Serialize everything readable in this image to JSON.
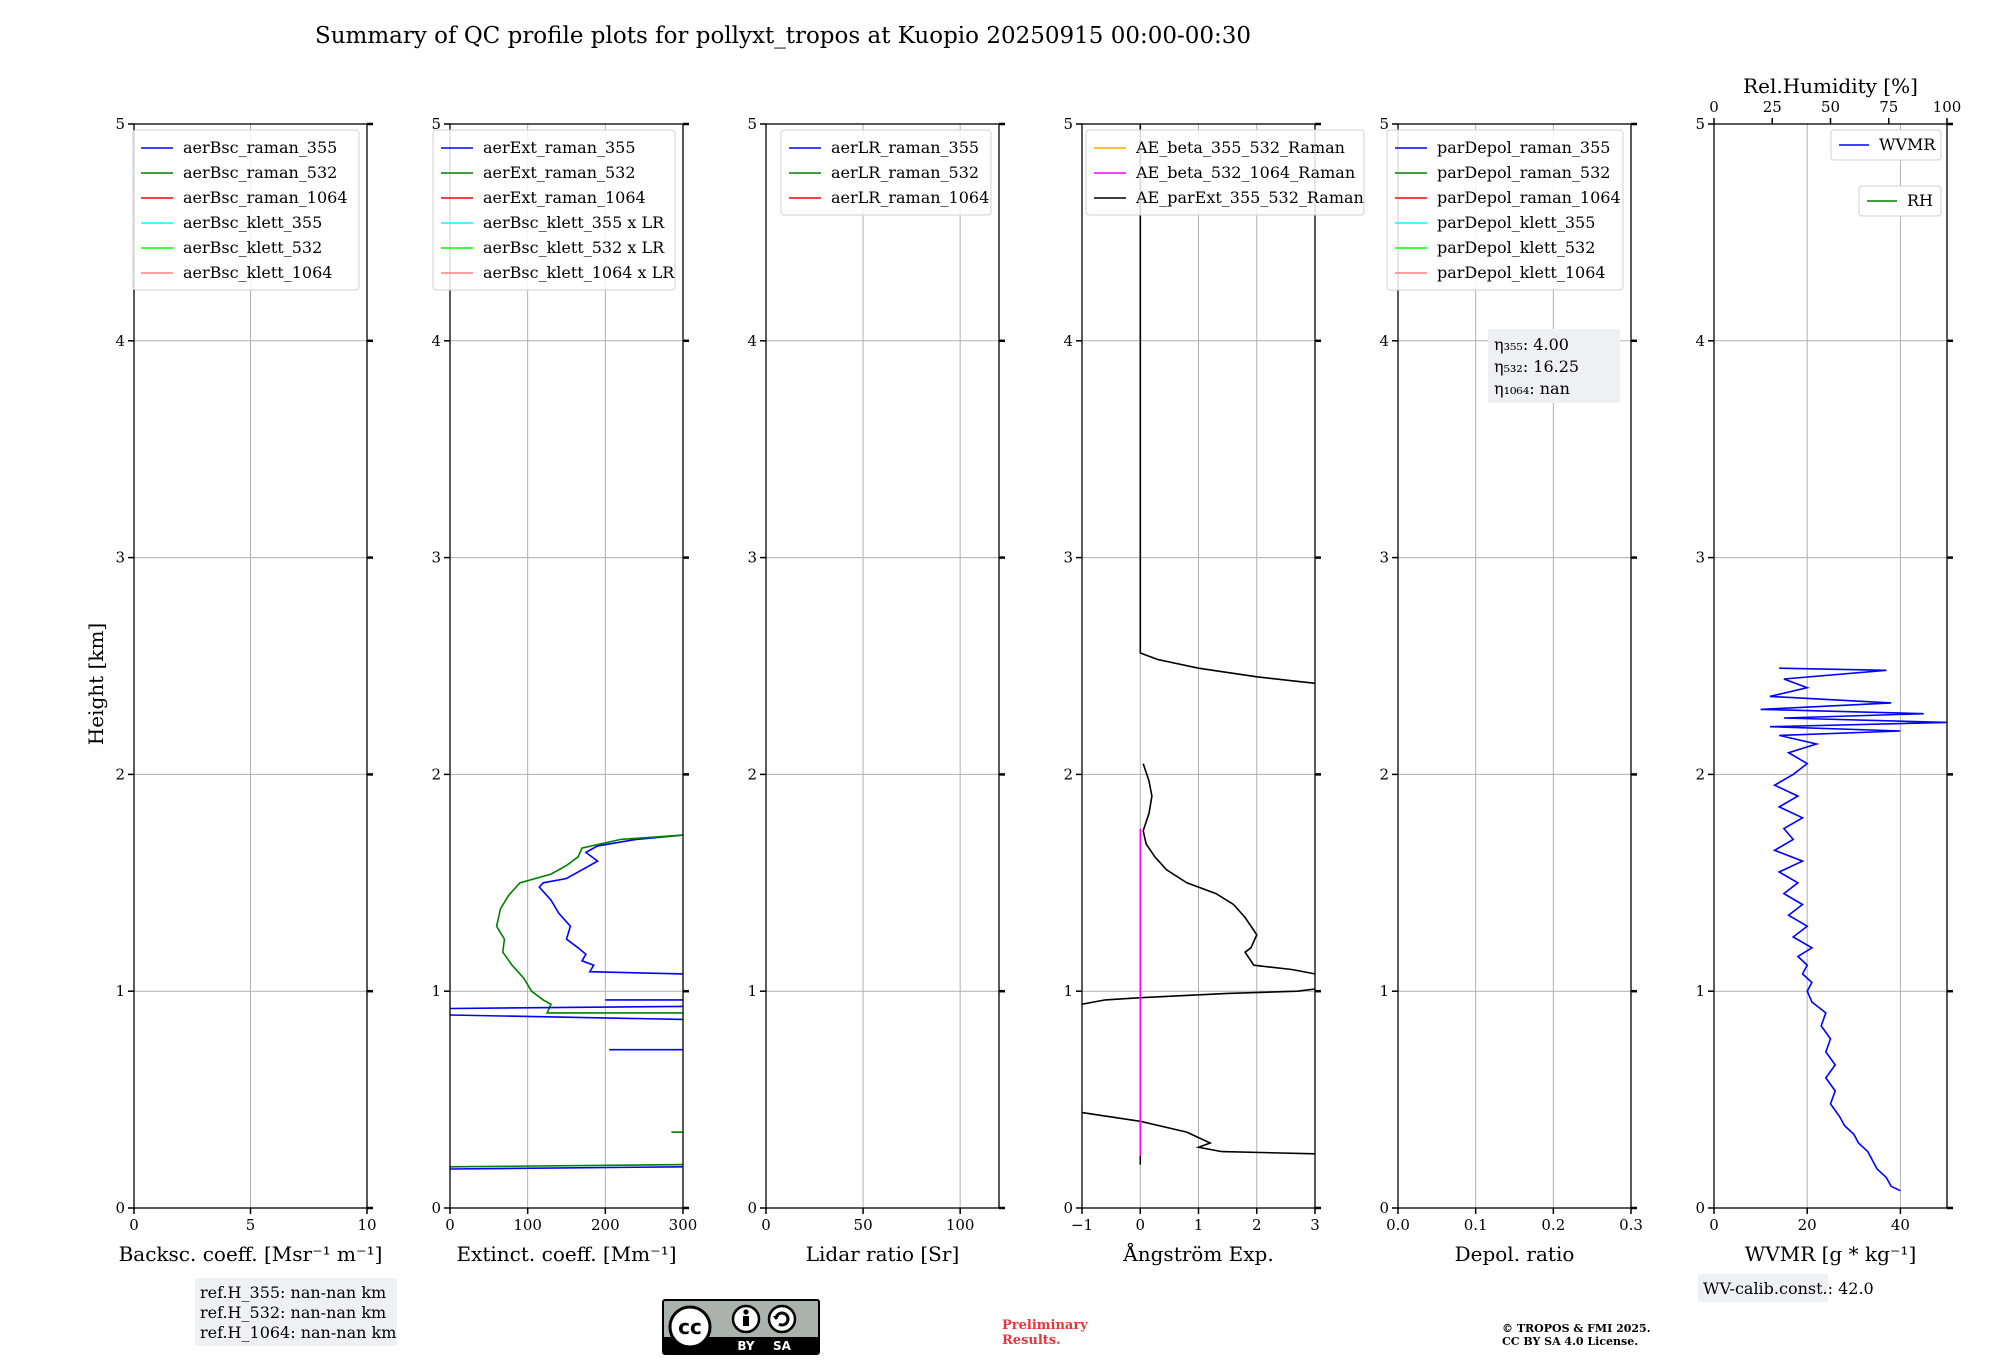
{
  "title": "Summary of QC profile plots for pollyxt_tropos at Kuopio 20250915 00:00-00:30",
  "colors": {
    "grid": "#b0b0b0",
    "blue": "#0000ff",
    "green": "#008000",
    "red": "#ff0000",
    "cyan": "#00ffff",
    "lime": "#00ff00",
    "pink": "#ff8080",
    "orange": "#ffa500",
    "magenta": "#ff00ff",
    "black": "#000000"
  },
  "ylabel": "Height [km]",
  "y_ticks": [
    "0",
    "1",
    "2",
    "3",
    "4",
    "5"
  ],
  "chart_data": [
    {
      "type": "line",
      "id": "bsc",
      "xlabel": "Backsc. coeff. [Msr⁻¹ m⁻¹]",
      "xlim": [
        0,
        10
      ],
      "ylim": [
        0,
        5
      ],
      "x_ticks": [
        {
          "v": 0,
          "label": "0"
        },
        {
          "v": 5,
          "label": "5"
        },
        {
          "v": 10,
          "label": "10"
        }
      ],
      "legend": [
        "aerBsc_raman_355",
        "aerBsc_raman_532",
        "aerBsc_raman_1064",
        "aerBsc_klett_355",
        "aerBsc_klett_532",
        "aerBsc_klett_1064"
      ],
      "legend_colors": [
        "#0000ff",
        "#008000",
        "#ff0000",
        "#00ffff",
        "#00ff00",
        "#ff8080"
      ],
      "legend_placement": "top-right",
      "series": []
    },
    {
      "type": "line",
      "id": "ext",
      "xlabel": "Extinct. coeff. [Mm⁻¹]",
      "xlim": [
        0,
        300
      ],
      "ylim": [
        0,
        5
      ],
      "x_ticks": [
        {
          "v": 0,
          "label": "0"
        },
        {
          "v": 100,
          "label": "100"
        },
        {
          "v": 200,
          "label": "200"
        },
        {
          "v": 300,
          "label": "300"
        }
      ],
      "legend": [
        "aerExt_raman_355",
        "aerExt_raman_532",
        "aerExt_raman_1064",
        "aerBsc_klett_355 x LR",
        "aerBsc_klett_532 x LR",
        "aerBsc_klett_1064 x LR"
      ],
      "legend_colors": [
        "#0000ff",
        "#008000",
        "#ff0000",
        "#00ffff",
        "#00ff00",
        "#ff8080"
      ],
      "legend_placement": "top-right",
      "series": [
        {
          "name": "aerExt_raman_355",
          "color": "#0000ff",
          "points": [
            [
              300,
              1.72
            ],
            [
              240,
              1.7
            ],
            [
              190,
              1.67
            ],
            [
              175,
              1.64
            ],
            [
              190,
              1.6
            ],
            [
              170,
              1.56
            ],
            [
              150,
              1.52
            ],
            [
              120,
              1.5
            ],
            [
              115,
              1.48
            ],
            [
              130,
              1.42
            ],
            [
              140,
              1.36
            ],
            [
              155,
              1.3
            ],
            [
              150,
              1.24
            ],
            [
              165,
              1.2
            ],
            [
              175,
              1.17
            ],
            [
              170,
              1.14
            ],
            [
              185,
              1.12
            ],
            [
              180,
              1.09
            ],
            [
              300,
              1.08
            ]
          ]
        },
        {
          "name": "aerExt_raman_532",
          "color": "#008000",
          "points": [
            [
              300,
              1.72
            ],
            [
              220,
              1.7
            ],
            [
              170,
              1.66
            ],
            [
              165,
              1.62
            ],
            [
              150,
              1.58
            ],
            [
              130,
              1.54
            ],
            [
              90,
              1.5
            ],
            [
              75,
              1.44
            ],
            [
              65,
              1.38
            ],
            [
              60,
              1.3
            ],
            [
              70,
              1.24
            ],
            [
              68,
              1.18
            ],
            [
              80,
              1.12
            ],
            [
              95,
              1.06
            ],
            [
              105,
              1.0
            ],
            [
              120,
              0.96
            ],
            [
              130,
              0.94
            ],
            [
              125,
              0.9
            ],
            [
              300,
              0.9
            ]
          ]
        },
        {
          "name": "aerExt_raman_355 (spikes)",
          "color": "#0000ff",
          "points": [
            [
              0,
              0.92
            ],
            [
              300,
              0.93
            ]
          ]
        },
        {
          "name": "aerExt_raman_355 (spikes 2)",
          "color": "#0000ff",
          "points": [
            [
              0,
              0.89
            ],
            [
              300,
              0.87
            ]
          ]
        },
        {
          "name": "aerExt_raman_355 (spikes 3)",
          "color": "#0000ff",
          "points": [
            [
              200,
              0.96
            ],
            [
              300,
              0.96
            ]
          ]
        },
        {
          "name": "aerExt_raman_355 (spikes 4)",
          "color": "#0000ff",
          "points": [
            [
              205,
              0.73
            ],
            [
              300,
              0.73
            ]
          ]
        },
        {
          "name": "aerExt_raman_355 (low)",
          "color": "#0000ff",
          "points": [
            [
              0,
              0.18
            ],
            [
              300,
              0.19
            ]
          ]
        },
        {
          "name": "aerExt_raman_532 (low)",
          "color": "#008000",
          "points": [
            [
              0,
              0.19
            ],
            [
              300,
              0.2
            ]
          ]
        },
        {
          "name": "aerExt_raman_532 (low 2)",
          "color": "#008000",
          "points": [
            [
              285,
              0.35
            ],
            [
              300,
              0.35
            ]
          ]
        }
      ]
    },
    {
      "type": "line",
      "id": "lr",
      "xlabel": "Lidar ratio [Sr]",
      "xlim": [
        0,
        120
      ],
      "ylim": [
        0,
        5
      ],
      "x_ticks": [
        {
          "v": 0,
          "label": "0"
        },
        {
          "v": 50,
          "label": "50"
        },
        {
          "v": 100,
          "label": "100"
        }
      ],
      "legend": [
        "aerLR_raman_355",
        "aerLR_raman_532",
        "aerLR_raman_1064"
      ],
      "legend_colors": [
        "#0000ff",
        "#008000",
        "#ff0000"
      ],
      "legend_placement": "top-right",
      "series": []
    },
    {
      "type": "line",
      "id": "ae",
      "xlabel": "Ångström Exp.",
      "xlim": [
        -1,
        3
      ],
      "ylim": [
        0,
        5
      ],
      "x_ticks": [
        {
          "v": -1,
          "label": "−1"
        },
        {
          "v": 0,
          "label": "0"
        },
        {
          "v": 1,
          "label": "1"
        },
        {
          "v": 2,
          "label": "2"
        },
        {
          "v": 3,
          "label": "3"
        }
      ],
      "legend": [
        "AE_beta_355_532_Raman",
        "AE_beta_532_1064_Raman",
        "AE_parExt_355_532_Raman"
      ],
      "legend_colors": [
        "#ffa500",
        "#ff00ff",
        "#000000"
      ],
      "legend_placement": "top-left",
      "series": [
        {
          "name": "AE_parExt_355_532_Raman",
          "color": "#000000",
          "points": [
            [
              0,
              5
            ],
            [
              0,
              2.56
            ],
            [
              0.3,
              2.53
            ],
            [
              1.0,
              2.49
            ],
            [
              2.0,
              2.45
            ],
            [
              3,
              2.42
            ]
          ]
        },
        {
          "name": "AE_parExt_355_532_Raman (mid)",
          "color": "#000000",
          "points": [
            [
              0.05,
              2.05
            ],
            [
              0.15,
              1.97
            ],
            [
              0.2,
              1.9
            ],
            [
              0.15,
              1.82
            ],
            [
              0.05,
              1.74
            ],
            [
              0.1,
              1.68
            ],
            [
              0.25,
              1.62
            ],
            [
              0.45,
              1.56
            ],
            [
              0.8,
              1.5
            ],
            [
              1.3,
              1.45
            ],
            [
              1.6,
              1.4
            ],
            [
              1.8,
              1.34
            ],
            [
              2.0,
              1.26
            ],
            [
              1.9,
              1.2
            ],
            [
              1.8,
              1.18
            ],
            [
              1.95,
              1.12
            ],
            [
              2.6,
              1.1
            ],
            [
              3,
              1.08
            ]
          ]
        },
        {
          "name": "AE_parExt_355_532_Raman (low)",
          "color": "#000000",
          "points": [
            [
              3,
              1.01
            ],
            [
              2.7,
              1.0
            ],
            [
              1.5,
              0.99
            ],
            [
              0,
              0.97
            ],
            [
              -0.6,
              0.96
            ],
            [
              -1,
              0.94
            ]
          ]
        },
        {
          "name": "AE_parExt_355_532_Raman (bottom)",
          "color": "#000000",
          "points": [
            [
              -1,
              0.44
            ],
            [
              0,
              0.4
            ],
            [
              0.8,
              0.35
            ],
            [
              1.2,
              0.3
            ],
            [
              1.0,
              0.28
            ],
            [
              1.4,
              0.26
            ],
            [
              3,
              0.25
            ]
          ]
        },
        {
          "name": "AE_parExt_355_532_Raman (base)",
          "color": "#000000",
          "points": [
            [
              0,
              0.24
            ],
            [
              0,
              0.2
            ]
          ]
        },
        {
          "name": "AE_beta_532_1064_Raman",
          "color": "#ff00ff",
          "points": [
            [
              0,
              1.75
            ],
            [
              0,
              0.24
            ]
          ]
        }
      ]
    },
    {
      "type": "line",
      "id": "depol",
      "xlabel": "Depol. ratio",
      "xlim": [
        0,
        0.3
      ],
      "ylim": [
        0,
        5
      ],
      "x_ticks": [
        {
          "v": 0,
          "label": "0.0"
        },
        {
          "v": 0.1,
          "label": "0.1"
        },
        {
          "v": 0.2,
          "label": "0.2"
        },
        {
          "v": 0.3,
          "label": "0.3"
        }
      ],
      "legend": [
        "parDepol_raman_355",
        "parDepol_raman_532",
        "parDepol_raman_1064",
        "parDepol_klett_355",
        "parDepol_klett_532",
        "parDepol_klett_1064"
      ],
      "legend_colors": [
        "#0000ff",
        "#008000",
        "#ff0000",
        "#00ffff",
        "#00ff00",
        "#ff8080"
      ],
      "legend_placement": "top-right",
      "series": []
    },
    {
      "type": "line",
      "id": "wv",
      "xlabel": "WVMR [g * kg⁻¹]",
      "xlim": [
        0,
        50
      ],
      "ylim": [
        0,
        5
      ],
      "x_ticks": [
        {
          "v": 0,
          "label": "0"
        },
        {
          "v": 20,
          "label": "20"
        },
        {
          "v": 40,
          "label": "40"
        }
      ],
      "top_label": "Rel.Humidity [%]",
      "top_ticks": [
        {
          "v": 0,
          "label": "0"
        },
        {
          "v": 25,
          "label": "25"
        },
        {
          "v": 50,
          "label": "50"
        },
        {
          "v": 75,
          "label": "75"
        },
        {
          "v": 100,
          "label": "100"
        }
      ],
      "top_lim": [
        0,
        100
      ],
      "legend": [
        "WVMR",
        "RH"
      ],
      "legend_colors": [
        "#0000ff",
        "#008000"
      ],
      "legend_placement": "top-right",
      "series": [
        {
          "name": "WVMR",
          "color": "#0000ff",
          "points": [
            [
              40,
              0.08
            ],
            [
              38,
              0.1
            ],
            [
              37,
              0.14
            ],
            [
              35,
              0.18
            ],
            [
              34,
              0.22
            ],
            [
              33,
              0.26
            ],
            [
              31,
              0.3
            ],
            [
              30,
              0.34
            ],
            [
              28,
              0.38
            ],
            [
              27,
              0.42
            ],
            [
              25,
              0.48
            ],
            [
              26,
              0.54
            ],
            [
              24,
              0.6
            ],
            [
              26,
              0.66
            ],
            [
              24,
              0.72
            ],
            [
              25,
              0.78
            ],
            [
              23,
              0.84
            ],
            [
              24,
              0.9
            ],
            [
              21,
              0.95
            ],
            [
              20,
              1.0
            ],
            [
              21,
              1.04
            ],
            [
              19,
              1.08
            ],
            [
              20,
              1.12
            ],
            [
              18,
              1.16
            ],
            [
              21,
              1.2
            ],
            [
              17,
              1.25
            ],
            [
              20,
              1.3
            ],
            [
              16,
              1.35
            ],
            [
              19,
              1.4
            ],
            [
              15,
              1.45
            ],
            [
              18,
              1.5
            ],
            [
              14,
              1.55
            ],
            [
              19,
              1.6
            ],
            [
              13,
              1.65
            ],
            [
              17,
              1.7
            ],
            [
              15,
              1.75
            ],
            [
              19,
              1.8
            ],
            [
              14,
              1.85
            ],
            [
              18,
              1.9
            ],
            [
              13,
              1.95
            ],
            [
              17,
              2.0
            ],
            [
              20,
              2.05
            ],
            [
              16,
              2.1
            ],
            [
              22,
              2.14
            ],
            [
              14,
              2.18
            ],
            [
              40,
              2.2
            ],
            [
              12,
              2.22
            ],
            [
              50,
              2.24
            ],
            [
              15,
              2.26
            ],
            [
              45,
              2.28
            ],
            [
              10,
              2.3
            ],
            [
              38,
              2.33
            ],
            [
              12,
              2.36
            ],
            [
              20,
              2.4
            ],
            [
              15,
              2.44
            ],
            [
              37,
              2.48
            ],
            [
              14,
              2.49
            ]
          ]
        }
      ]
    }
  ],
  "eta_box": {
    "l1": "η₃₅₅: 4.00",
    "l2": "η₅₃₂: 16.25",
    "l3": "η₁₀₆₄: nan"
  },
  "ref_box": {
    "l1": "ref.H_355: nan-nan km",
    "l2": "ref.H_532: nan-nan km",
    "l3": "ref.H_1064: nan-nan km"
  },
  "wv_calib": "WV-calib.const.: 42.0",
  "preliminary": {
    "l1": "Preliminary",
    "l2": "Results."
  },
  "copyright": {
    "l1": "© TROPOS & FMI 2025.",
    "l2": "CC BY SA 4.0 License."
  },
  "cc_logo": {
    "l1": "BY",
    "l2": "SA"
  }
}
